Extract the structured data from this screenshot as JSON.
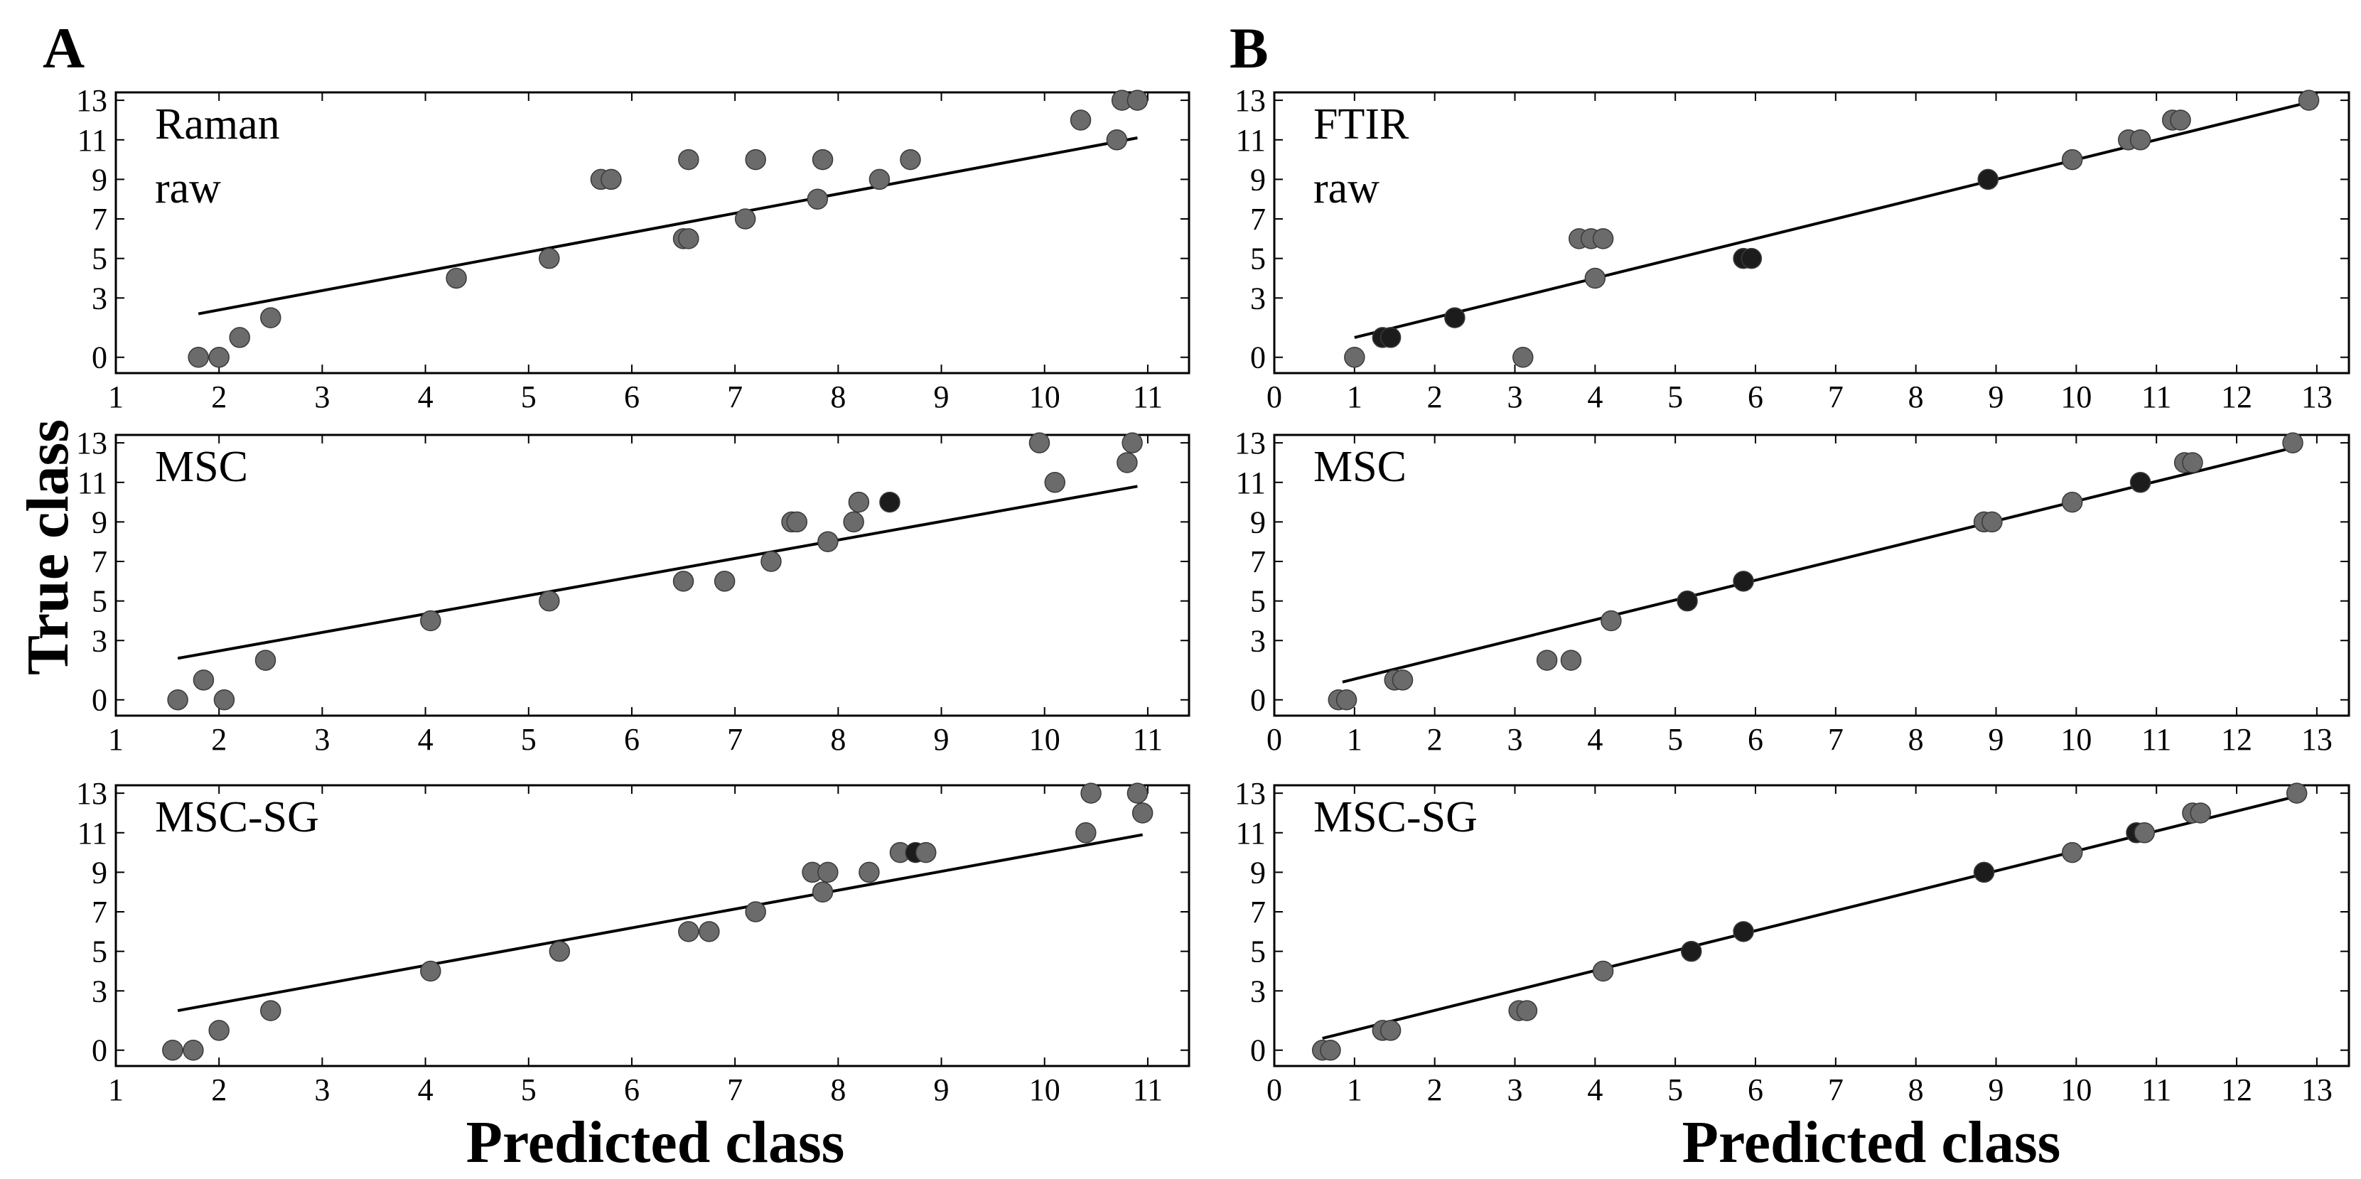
{
  "figure": {
    "panel_labels": [
      "A",
      "B"
    ],
    "ylabel": "True class",
    "xlabel": "Predicted class",
    "colors": {
      "marker_gray": "#6b6b6b",
      "marker_dark": "#1c1c1c",
      "line": "#000000",
      "frame": "#000000"
    }
  },
  "chart_data": [
    {
      "id": "A1",
      "panel": "A",
      "type": "scatter",
      "title": "Raman\nraw",
      "title_lines": [
        "Raman",
        "raw"
      ],
      "xlabel": "Predicted class",
      "ylabel": "True class",
      "xlim": [
        1,
        11.4
      ],
      "ylim": [
        -0.8,
        13.4
      ],
      "xticks": [
        1,
        2,
        3,
        4,
        5,
        6,
        7,
        8,
        9,
        10,
        11
      ],
      "yticks": [
        0,
        3,
        5,
        7,
        9,
        11,
        13
      ],
      "fit_line": [
        [
          1.8,
          2.2
        ],
        [
          10.9,
          11.1
        ]
      ],
      "points": [
        [
          1.8,
          0,
          "gray"
        ],
        [
          2.0,
          0,
          "gray"
        ],
        [
          2.2,
          1,
          "gray"
        ],
        [
          2.5,
          2,
          "gray"
        ],
        [
          4.3,
          4,
          "gray"
        ],
        [
          5.2,
          5,
          "gray"
        ],
        [
          5.7,
          9,
          "gray"
        ],
        [
          5.8,
          9,
          "gray"
        ],
        [
          6.5,
          6,
          "gray"
        ],
        [
          6.55,
          6,
          "gray"
        ],
        [
          6.55,
          10,
          "gray"
        ],
        [
          7.1,
          7,
          "gray"
        ],
        [
          7.2,
          10,
          "gray"
        ],
        [
          7.8,
          8,
          "gray"
        ],
        [
          7.85,
          10,
          "gray"
        ],
        [
          8.4,
          9,
          "gray"
        ],
        [
          8.7,
          10,
          "gray"
        ],
        [
          10.35,
          12,
          "gray"
        ],
        [
          10.7,
          11,
          "gray"
        ],
        [
          10.75,
          13,
          "gray"
        ],
        [
          10.9,
          13,
          "gray"
        ]
      ]
    },
    {
      "id": "A2",
      "panel": "A",
      "type": "scatter",
      "title": "MSC",
      "title_lines": [
        "MSC"
      ],
      "xlabel": "Predicted class",
      "ylabel": "True class",
      "xlim": [
        1,
        11.4
      ],
      "ylim": [
        -0.8,
        13.4
      ],
      "xticks": [
        1,
        2,
        3,
        4,
        5,
        6,
        7,
        8,
        9,
        10,
        11
      ],
      "yticks": [
        0,
        3,
        5,
        7,
        9,
        11,
        13
      ],
      "fit_line": [
        [
          1.6,
          2.1
        ],
        [
          10.9,
          10.8
        ]
      ],
      "points": [
        [
          1.6,
          0,
          "gray"
        ],
        [
          1.85,
          1,
          "gray"
        ],
        [
          2.05,
          0,
          "gray"
        ],
        [
          2.45,
          2,
          "gray"
        ],
        [
          4.05,
          4,
          "gray"
        ],
        [
          5.2,
          5,
          "gray"
        ],
        [
          6.5,
          6,
          "gray"
        ],
        [
          6.9,
          6,
          "gray"
        ],
        [
          7.35,
          7,
          "gray"
        ],
        [
          7.55,
          9,
          "gray"
        ],
        [
          7.6,
          9,
          "gray"
        ],
        [
          7.9,
          8,
          "gray"
        ],
        [
          8.15,
          9,
          "gray"
        ],
        [
          8.2,
          10,
          "gray"
        ],
        [
          8.5,
          10,
          "dark"
        ],
        [
          9.95,
          13,
          "gray"
        ],
        [
          10.1,
          11,
          "gray"
        ],
        [
          10.8,
          12,
          "gray"
        ],
        [
          10.85,
          13,
          "gray"
        ]
      ]
    },
    {
      "id": "A3",
      "panel": "A",
      "type": "scatter",
      "title": "MSC-SG",
      "title_lines": [
        "MSC-SG"
      ],
      "xlabel": "Predicted class",
      "ylabel": "True class",
      "xlim": [
        1,
        11.4
      ],
      "ylim": [
        -0.8,
        13.4
      ],
      "xticks": [
        1,
        2,
        3,
        4,
        5,
        6,
        7,
        8,
        9,
        10,
        11
      ],
      "yticks": [
        0,
        3,
        5,
        7,
        9,
        11,
        13
      ],
      "fit_line": [
        [
          1.6,
          2.0
        ],
        [
          10.95,
          10.9
        ]
      ],
      "points": [
        [
          1.55,
          0,
          "gray"
        ],
        [
          1.75,
          0,
          "gray"
        ],
        [
          2.0,
          1,
          "gray"
        ],
        [
          2.5,
          2,
          "gray"
        ],
        [
          4.05,
          4,
          "gray"
        ],
        [
          5.3,
          5,
          "gray"
        ],
        [
          6.55,
          6,
          "gray"
        ],
        [
          6.75,
          6,
          "gray"
        ],
        [
          7.2,
          7,
          "gray"
        ],
        [
          7.75,
          9,
          "gray"
        ],
        [
          7.85,
          8,
          "gray"
        ],
        [
          7.9,
          9,
          "gray"
        ],
        [
          8.3,
          9,
          "gray"
        ],
        [
          8.6,
          10,
          "gray"
        ],
        [
          8.75,
          10,
          "dark"
        ],
        [
          8.85,
          10,
          "gray"
        ],
        [
          10.4,
          11,
          "gray"
        ],
        [
          10.45,
          13,
          "gray"
        ],
        [
          10.9,
          13,
          "gray"
        ],
        [
          10.95,
          12,
          "gray"
        ]
      ]
    },
    {
      "id": "B1",
      "panel": "B",
      "type": "scatter",
      "title": "FTIR\nraw",
      "title_lines": [
        "FTIR",
        "raw"
      ],
      "xlabel": "Predicted class",
      "ylabel": "True class",
      "xlim": [
        0,
        13.4
      ],
      "ylim": [
        -0.8,
        13.4
      ],
      "xticks": [
        0,
        1,
        2,
        3,
        4,
        5,
        6,
        7,
        8,
        9,
        10,
        11,
        12,
        13
      ],
      "yticks": [
        0,
        3,
        5,
        7,
        9,
        11,
        13
      ],
      "fit_line": [
        [
          1.0,
          1.0
        ],
        [
          12.9,
          12.9
        ]
      ],
      "points": [
        [
          1.0,
          0,
          "gray"
        ],
        [
          1.35,
          1,
          "dark"
        ],
        [
          1.45,
          1,
          "dark"
        ],
        [
          2.25,
          2,
          "dark"
        ],
        [
          3.1,
          0,
          "gray"
        ],
        [
          3.8,
          6,
          "gray"
        ],
        [
          3.95,
          6,
          "gray"
        ],
        [
          4.1,
          6,
          "gray"
        ],
        [
          4.0,
          4,
          "gray"
        ],
        [
          5.85,
          5,
          "dark"
        ],
        [
          5.95,
          5,
          "dark"
        ],
        [
          8.9,
          9,
          "dark"
        ],
        [
          9.95,
          10,
          "gray"
        ],
        [
          10.65,
          11,
          "gray"
        ],
        [
          10.8,
          11,
          "gray"
        ],
        [
          11.2,
          12,
          "gray"
        ],
        [
          11.3,
          12,
          "gray"
        ],
        [
          12.9,
          13,
          "gray"
        ]
      ]
    },
    {
      "id": "B2",
      "panel": "B",
      "type": "scatter",
      "title": "MSC",
      "title_lines": [
        "MSC"
      ],
      "xlabel": "Predicted class",
      "ylabel": "True class",
      "xlim": [
        0,
        13.4
      ],
      "ylim": [
        -0.8,
        13.4
      ],
      "xticks": [
        0,
        1,
        2,
        3,
        4,
        5,
        6,
        7,
        8,
        9,
        10,
        11,
        12,
        13
      ],
      "yticks": [
        0,
        3,
        5,
        7,
        9,
        11,
        13
      ],
      "fit_line": [
        [
          0.85,
          0.9
        ],
        [
          12.75,
          12.8
        ]
      ],
      "points": [
        [
          0.8,
          0,
          "gray"
        ],
        [
          0.9,
          0,
          "gray"
        ],
        [
          1.5,
          1,
          "gray"
        ],
        [
          1.6,
          1,
          "gray"
        ],
        [
          3.4,
          2,
          "gray"
        ],
        [
          3.7,
          2,
          "gray"
        ],
        [
          4.2,
          4,
          "gray"
        ],
        [
          5.15,
          5,
          "dark"
        ],
        [
          5.85,
          6,
          "dark"
        ],
        [
          8.85,
          9,
          "gray"
        ],
        [
          8.95,
          9,
          "gray"
        ],
        [
          9.95,
          10,
          "gray"
        ],
        [
          10.8,
          11,
          "dark"
        ],
        [
          11.35,
          12,
          "gray"
        ],
        [
          11.45,
          12,
          "gray"
        ],
        [
          12.7,
          13,
          "gray"
        ]
      ]
    },
    {
      "id": "B3",
      "panel": "B",
      "type": "scatter",
      "title": "MSC-SG",
      "title_lines": [
        "MSC-SG"
      ],
      "xlabel": "Predicted class",
      "ylabel": "True class",
      "xlim": [
        0,
        13.4
      ],
      "ylim": [
        -0.8,
        13.4
      ],
      "xticks": [
        0,
        1,
        2,
        3,
        4,
        5,
        6,
        7,
        8,
        9,
        10,
        11,
        12,
        13
      ],
      "yticks": [
        0,
        3,
        5,
        7,
        9,
        11,
        13
      ],
      "fit_line": [
        [
          0.6,
          0.6
        ],
        [
          12.8,
          12.9
        ]
      ],
      "points": [
        [
          0.6,
          0,
          "gray"
        ],
        [
          0.7,
          0,
          "gray"
        ],
        [
          1.35,
          1,
          "gray"
        ],
        [
          1.45,
          1,
          "gray"
        ],
        [
          3.05,
          2,
          "gray"
        ],
        [
          3.15,
          2,
          "gray"
        ],
        [
          4.1,
          4,
          "gray"
        ],
        [
          5.2,
          5,
          "dark"
        ],
        [
          5.85,
          6,
          "dark"
        ],
        [
          8.85,
          9,
          "dark"
        ],
        [
          9.95,
          10,
          "gray"
        ],
        [
          10.75,
          11,
          "dark"
        ],
        [
          10.85,
          11,
          "gray"
        ],
        [
          11.45,
          12,
          "gray"
        ],
        [
          11.55,
          12,
          "gray"
        ],
        [
          12.75,
          13,
          "gray"
        ]
      ]
    }
  ]
}
